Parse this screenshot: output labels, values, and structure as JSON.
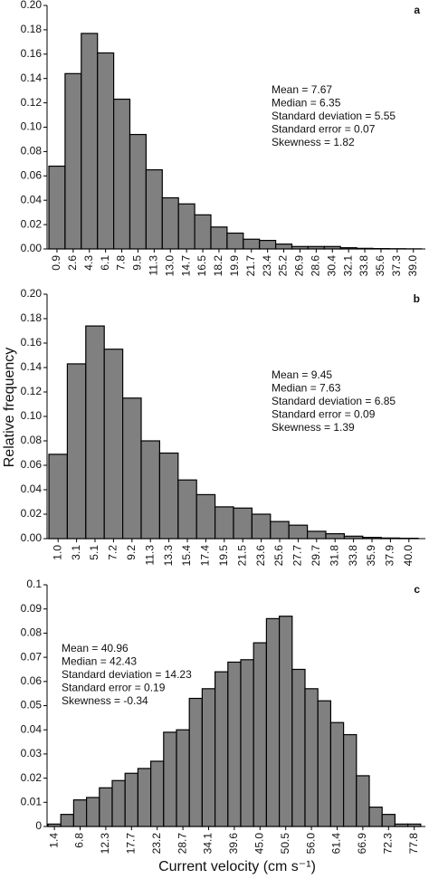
{
  "y_label": "Relative frequency",
  "x_label": "Current velocity (cm s⁻¹)",
  "chart_data": [
    {
      "type": "bar",
      "label": "a",
      "color": "#808080",
      "categories": [
        "0.9",
        "2.6",
        "4.3",
        "6.1",
        "7.8",
        "9.5",
        "11.3",
        "13.0",
        "14.7",
        "16.5",
        "18.2",
        "19.9",
        "21.7",
        "23.4",
        "25.2",
        "26.9",
        "28.6",
        "30.4",
        "32.1",
        "33.8",
        "35.6",
        "37.3",
        "39.0"
      ],
      "values": [
        0.068,
        0.144,
        0.177,
        0.161,
        0.123,
        0.094,
        0.065,
        0.042,
        0.037,
        0.028,
        0.018,
        0.013,
        0.008,
        0.007,
        0.004,
        0.002,
        0.002,
        0.002,
        0.001,
        0.0005,
        0.0003,
        0.0002,
        0.0001
      ],
      "ylim": [
        0,
        0.2
      ],
      "yticks": [
        {
          "value": 0,
          "label": "0.00"
        },
        {
          "value": 0.02,
          "label": "0.02"
        },
        {
          "value": 0.04,
          "label": "0.04"
        },
        {
          "value": 0.06,
          "label": "0.06"
        },
        {
          "value": 0.08,
          "label": "0.08"
        },
        {
          "value": 0.1,
          "label": "0.10"
        },
        {
          "value": 0.12,
          "label": "0.12"
        },
        {
          "value": 0.14,
          "label": "0.14"
        },
        {
          "value": 0.16,
          "label": "0.16"
        },
        {
          "value": 0.18,
          "label": "0.18"
        },
        {
          "value": 0.2,
          "label": "0.20"
        }
      ],
      "annotations": [
        "Mean = 7.67",
        "Median = 6.35",
        "Standard deviation = 5.55",
        "Standard error = 0.07",
        "Skewness = 1.82"
      ]
    },
    {
      "type": "bar",
      "label": "b",
      "color": "#808080",
      "categories": [
        "1.0",
        "3.1",
        "5.1",
        "7.2",
        "9.2",
        "11.3",
        "13.3",
        "15.4",
        "17.4",
        "19.5",
        "21.5",
        "23.6",
        "25.6",
        "27.7",
        "29.7",
        "31.8",
        "33.8",
        "35.9",
        "37.9",
        "40.0"
      ],
      "values": [
        0.069,
        0.143,
        0.174,
        0.155,
        0.115,
        0.08,
        0.07,
        0.048,
        0.036,
        0.026,
        0.025,
        0.02,
        0.014,
        0.011,
        0.006,
        0.004,
        0.002,
        0.001,
        0.0005,
        0.0003
      ],
      "ylim": [
        0,
        0.2
      ],
      "yticks": [
        {
          "value": 0,
          "label": "0.00"
        },
        {
          "value": 0.02,
          "label": "0.02"
        },
        {
          "value": 0.04,
          "label": "0.04"
        },
        {
          "value": 0.06,
          "label": "0.06"
        },
        {
          "value": 0.08,
          "label": "0.08"
        },
        {
          "value": 0.1,
          "label": "0.10"
        },
        {
          "value": 0.12,
          "label": "0.12"
        },
        {
          "value": 0.14,
          "label": "0.14"
        },
        {
          "value": 0.16,
          "label": "0.16"
        },
        {
          "value": 0.18,
          "label": "0.18"
        },
        {
          "value": 0.2,
          "label": "0.20"
        }
      ],
      "annotations": [
        "Mean = 9.45",
        "Median = 7.63",
        "Standard deviation = 6.85",
        "Standard error = 0.09",
        "Skewness = 1.39"
      ]
    },
    {
      "type": "bar",
      "label": "c",
      "color": "#808080",
      "categories": [
        "1.4",
        null,
        "6.8",
        null,
        "12.3",
        null,
        "17.7",
        null,
        "23.2",
        null,
        "28.7",
        null,
        "34.1",
        null,
        "39.6",
        null,
        "45.0",
        null,
        "50.5",
        null,
        "56.0",
        null,
        "61.4",
        null,
        "66.9",
        null,
        "72.3",
        null,
        "77.8"
      ],
      "values": [
        0.001,
        0.005,
        0.011,
        0.012,
        0.016,
        0.019,
        0.022,
        0.024,
        0.027,
        0.039,
        0.04,
        0.053,
        0.057,
        0.064,
        0.068,
        0.069,
        0.076,
        0.086,
        0.087,
        0.065,
        0.057,
        0.052,
        0.043,
        0.038,
        0.021,
        0.008,
        0.005,
        0.001,
        0.001
      ],
      "ylim": [
        0,
        0.1
      ],
      "yticks": [
        0,
        0.01,
        0.02,
        0.03,
        0.04,
        0.05,
        0.06,
        0.07,
        0.08,
        0.09,
        0.1
      ],
      "annotations": [
        "Mean = 40.96",
        "Median = 42.43",
        "Standard deviation = 14.23",
        "Standard error = 0.19",
        "Skewness = -0.34"
      ]
    }
  ]
}
